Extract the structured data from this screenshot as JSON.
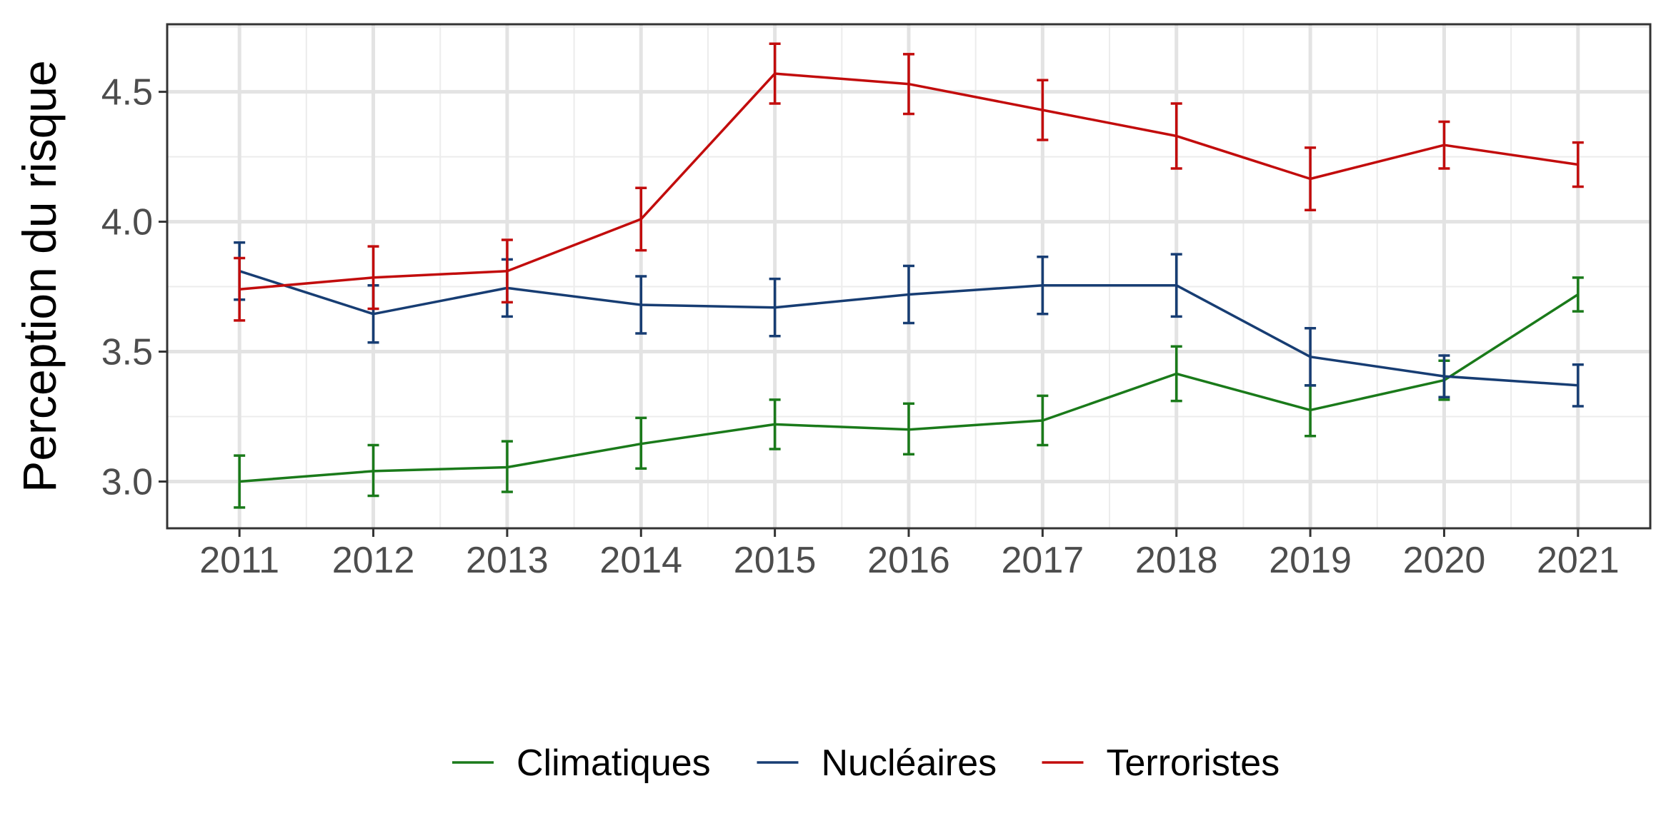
{
  "chart_data": {
    "type": "line",
    "title": "",
    "xlabel": "",
    "ylabel": "Perception du risque",
    "x": [
      2011,
      2012,
      2013,
      2014,
      2015,
      2016,
      2017,
      2018,
      2019,
      2020,
      2021
    ],
    "xlim": [
      2010.46,
      2021.54
    ],
    "ylim": [
      2.82,
      4.76
    ],
    "y_ticks": [
      3.0,
      3.5,
      4.0,
      4.5
    ],
    "y_tick_labels": [
      "3.0",
      "3.5",
      "4.0",
      "4.5"
    ],
    "grid": true,
    "error_bars": true,
    "legend": {
      "position": "bottom"
    },
    "series": [
      {
        "name": "Climatiques",
        "color": "#1a7a1a",
        "values": [
          3.0,
          3.04,
          3.055,
          3.145,
          3.22,
          3.2,
          3.235,
          3.415,
          3.275,
          3.39,
          3.72
        ],
        "lower": [
          2.9,
          2.945,
          2.96,
          3.05,
          3.125,
          3.105,
          3.14,
          3.31,
          3.175,
          3.315,
          3.655
        ],
        "upper": [
          3.1,
          3.14,
          3.155,
          3.245,
          3.315,
          3.3,
          3.33,
          3.52,
          3.37,
          3.465,
          3.785
        ]
      },
      {
        "name": "Nucléaires",
        "color": "#173d73",
        "values": [
          3.81,
          3.645,
          3.745,
          3.68,
          3.67,
          3.72,
          3.755,
          3.755,
          3.48,
          3.405,
          3.37
        ],
        "lower": [
          3.7,
          3.535,
          3.635,
          3.57,
          3.56,
          3.61,
          3.645,
          3.635,
          3.37,
          3.325,
          3.29
        ],
        "upper": [
          3.92,
          3.755,
          3.855,
          3.79,
          3.78,
          3.83,
          3.865,
          3.875,
          3.59,
          3.485,
          3.45
        ]
      },
      {
        "name": "Terroristes",
        "color": "#c20c0c",
        "values": [
          3.74,
          3.785,
          3.81,
          4.01,
          4.57,
          4.53,
          4.43,
          4.33,
          4.165,
          4.295,
          4.22
        ],
        "lower": [
          3.62,
          3.665,
          3.69,
          3.89,
          4.455,
          4.415,
          4.315,
          4.205,
          4.045,
          4.205,
          4.135
        ],
        "upper": [
          3.86,
          3.905,
          3.93,
          4.13,
          4.685,
          4.645,
          4.545,
          4.455,
          4.285,
          4.385,
          4.305
        ]
      }
    ]
  }
}
